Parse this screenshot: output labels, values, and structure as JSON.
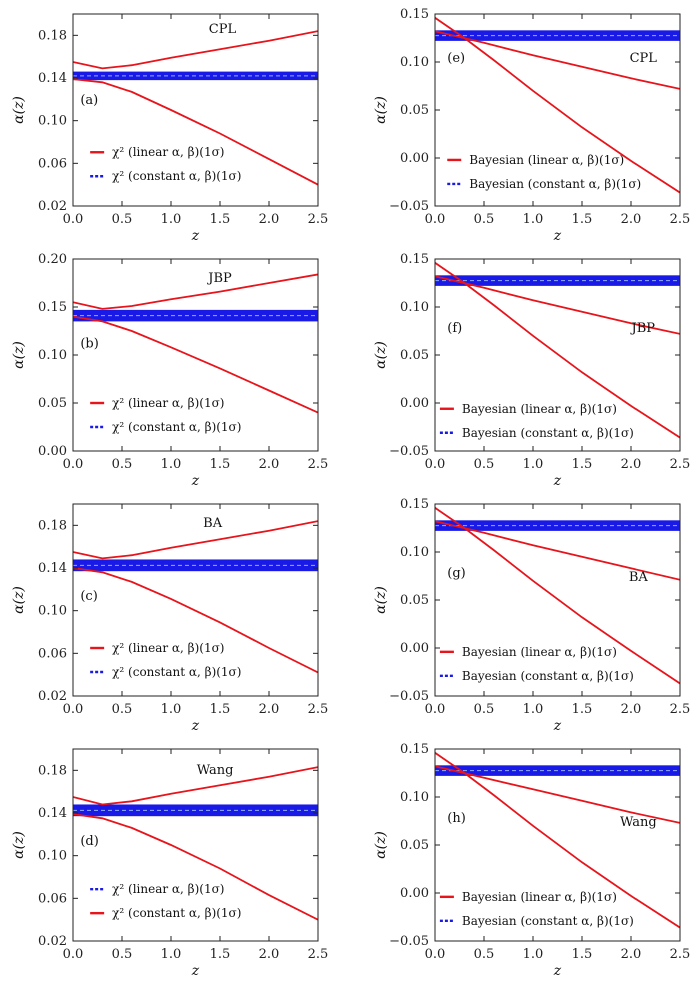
{
  "chart_data": [
    {
      "type": "line",
      "panel": "(a)",
      "title": "CPL",
      "xlabel": "z",
      "ylabel": "α(z)",
      "xlim": [
        0,
        2.5
      ],
      "ylim": [
        0.02,
        0.2
      ],
      "xticks": [
        "0.0",
        "0.5",
        "1.0",
        "1.5",
        "2.0",
        "2.5"
      ],
      "yticks": [
        "0.02",
        "0.06",
        "0.10",
        "0.14",
        "0.18"
      ],
      "ytick_values": [
        0.02,
        0.06,
        0.1,
        0.14,
        0.18
      ],
      "legend": [
        {
          "label": "χ² (linear α, β)(1σ)",
          "color": "#e8141b",
          "dash": "solid"
        },
        {
          "label": "χ² (constant α, β)(1σ)",
          "color": "#1a1ae6",
          "dash": "dashed"
        }
      ],
      "band": {
        "y_low": 0.138,
        "y_high": 0.146,
        "color": "#1a1ae6"
      },
      "series": [
        {
          "color": "#e8141b",
          "x": [
            0,
            0.3,
            0.6,
            1.0,
            1.5,
            2.0,
            2.5
          ],
          "y": [
            0.155,
            0.149,
            0.152,
            0.159,
            0.167,
            0.175,
            0.184
          ]
        },
        {
          "color": "#e8141b",
          "x": [
            0,
            0.3,
            0.6,
            1.0,
            1.5,
            2.0,
            2.5
          ],
          "y": [
            0.139,
            0.136,
            0.127,
            0.11,
            0.088,
            0.064,
            0.04
          ]
        }
      ]
    },
    {
      "type": "line",
      "panel": "(e)",
      "title": "CPL",
      "xlabel": "z",
      "ylabel": "α(z)",
      "xlim": [
        0,
        2.5
      ],
      "ylim": [
        -0.05,
        0.15
      ],
      "xticks": [
        "0.0",
        "0.5",
        "1.0",
        "1.5",
        "2.0",
        "2.5"
      ],
      "yticks": [
        "−0.05",
        "0.00",
        "0.05",
        "0.10",
        "0.15"
      ],
      "ytick_values": [
        -0.05,
        0.0,
        0.05,
        0.1,
        0.15
      ],
      "legend": [
        {
          "label": "Bayesian (linear α, β)(1σ)",
          "color": "#e8141b",
          "dash": "solid"
        },
        {
          "label": "Bayesian (constant α, β)(1σ)",
          "color": "#1a1ae6",
          "dash": "dashed"
        }
      ],
      "band": {
        "y_low": 0.122,
        "y_high": 0.133,
        "color": "#1a1ae6"
      },
      "series": [
        {
          "color": "#e8141b",
          "x": [
            0,
            0.5,
            1.0,
            1.5,
            2.0,
            2.5
          ],
          "y": [
            0.132,
            0.12,
            0.107,
            0.095,
            0.083,
            0.072
          ]
        },
        {
          "color": "#e8141b",
          "x": [
            0,
            0.3,
            0.6,
            1.0,
            1.5,
            2.0,
            2.5
          ],
          "y": [
            0.146,
            0.125,
            0.102,
            0.07,
            0.032,
            -0.003,
            -0.036
          ]
        }
      ]
    },
    {
      "type": "line",
      "panel": "(b)",
      "title": "JBP",
      "xlabel": "z",
      "ylabel": "α(z)",
      "xlim": [
        0,
        2.5
      ],
      "ylim": [
        0.0,
        0.2
      ],
      "xticks": [
        "0.0",
        "0.5",
        "1.0",
        "1.5",
        "2.0",
        "2.5"
      ],
      "yticks": [
        "0.00",
        "0.05",
        "0.10",
        "0.15",
        "0.20"
      ],
      "ytick_values": [
        0.0,
        0.05,
        0.1,
        0.15,
        0.2
      ],
      "legend": [
        {
          "label": "χ² (linear α, β)(1σ)",
          "color": "#e8141b",
          "dash": "solid"
        },
        {
          "label": "χ² (constant α, β)(1σ)",
          "color": "#1a1ae6",
          "dash": "dashed"
        }
      ],
      "band": {
        "y_low": 0.135,
        "y_high": 0.147,
        "color": "#1a1ae6"
      },
      "series": [
        {
          "color": "#e8141b",
          "x": [
            0,
            0.3,
            0.6,
            1.0,
            1.5,
            2.0,
            2.5
          ],
          "y": [
            0.155,
            0.148,
            0.151,
            0.158,
            0.166,
            0.175,
            0.184
          ]
        },
        {
          "color": "#e8141b",
          "x": [
            0,
            0.3,
            0.6,
            1.0,
            1.5,
            2.0,
            2.5
          ],
          "y": [
            0.14,
            0.135,
            0.125,
            0.108,
            0.086,
            0.063,
            0.04
          ]
        }
      ]
    },
    {
      "type": "line",
      "panel": "(f)",
      "title": "JBP",
      "xlabel": "z",
      "ylabel": "α(z)",
      "xlim": [
        0,
        2.5
      ],
      "ylim": [
        -0.05,
        0.15
      ],
      "xticks": [
        "0.0",
        "0.5",
        "1.0",
        "1.5",
        "2.0",
        "2.5"
      ],
      "yticks": [
        "−0.05",
        "0.00",
        "0.05",
        "0.10",
        "0.15"
      ],
      "ytick_values": [
        -0.05,
        0.0,
        0.05,
        0.1,
        0.15
      ],
      "legend": [
        {
          "label": "Bayesian (linear α, β)(1σ)",
          "color": "#e8141b",
          "dash": "solid"
        },
        {
          "label": "Bayesian (constant α, β)(1σ)",
          "color": "#1a1ae6",
          "dash": "dashed"
        }
      ],
      "band": {
        "y_low": 0.122,
        "y_high": 0.133,
        "color": "#1a1ae6"
      },
      "series": [
        {
          "color": "#e8141b",
          "x": [
            0,
            0.5,
            1.0,
            1.5,
            2.0,
            2.5
          ],
          "y": [
            0.132,
            0.12,
            0.107,
            0.095,
            0.083,
            0.072
          ]
        },
        {
          "color": "#e8141b",
          "x": [
            0,
            0.3,
            0.6,
            1.0,
            1.5,
            2.0,
            2.5
          ],
          "y": [
            0.146,
            0.125,
            0.102,
            0.07,
            0.032,
            -0.003,
            -0.036
          ]
        }
      ]
    },
    {
      "type": "line",
      "panel": "(c)",
      "title": "BA",
      "xlabel": "z",
      "ylabel": "α(z)",
      "xlim": [
        0,
        2.5
      ],
      "ylim": [
        0.02,
        0.2
      ],
      "xticks": [
        "0.0",
        "0.5",
        "1.0",
        "1.5",
        "2.0",
        "2.5"
      ],
      "yticks": [
        "0.02",
        "0.06",
        "0.10",
        "0.14",
        "0.18"
      ],
      "ytick_values": [
        0.02,
        0.06,
        0.1,
        0.14,
        0.18
      ],
      "legend": [
        {
          "label": "χ² (linear α, β)(1σ)",
          "color": "#e8141b",
          "dash": "solid"
        },
        {
          "label": "χ² (constant α, β)(1σ)",
          "color": "#1a1ae6",
          "dash": "dashed"
        }
      ],
      "band": {
        "y_low": 0.137,
        "y_high": 0.148,
        "color": "#1a1ae6"
      },
      "series": [
        {
          "color": "#e8141b",
          "x": [
            0,
            0.3,
            0.6,
            1.0,
            1.5,
            2.0,
            2.5
          ],
          "y": [
            0.155,
            0.149,
            0.152,
            0.159,
            0.167,
            0.175,
            0.184
          ]
        },
        {
          "color": "#e8141b",
          "x": [
            0,
            0.3,
            0.6,
            1.0,
            1.5,
            2.0,
            2.5
          ],
          "y": [
            0.14,
            0.136,
            0.127,
            0.111,
            0.089,
            0.065,
            0.042
          ]
        }
      ]
    },
    {
      "type": "line",
      "panel": "(g)",
      "title": "BA",
      "xlabel": "z",
      "ylabel": "α(z)",
      "xlim": [
        0,
        2.5
      ],
      "ylim": [
        -0.05,
        0.15
      ],
      "xticks": [
        "0.0",
        "0.5",
        "1.0",
        "1.5",
        "2.0",
        "2.5"
      ],
      "yticks": [
        "−0.05",
        "0.00",
        "0.05",
        "0.10",
        "0.15"
      ],
      "ytick_values": [
        -0.05,
        0.0,
        0.05,
        0.1,
        0.15
      ],
      "legend": [
        {
          "label": "Bayesian (linear α, β)(1σ)",
          "color": "#e8141b",
          "dash": "solid"
        },
        {
          "label": "Bayesian (constant α, β)(1σ)",
          "color": "#1a1ae6",
          "dash": "dashed"
        }
      ],
      "band": {
        "y_low": 0.122,
        "y_high": 0.133,
        "color": "#1a1ae6"
      },
      "series": [
        {
          "color": "#e8141b",
          "x": [
            0,
            0.5,
            1.0,
            1.5,
            2.0,
            2.5
          ],
          "y": [
            0.132,
            0.12,
            0.107,
            0.095,
            0.083,
            0.071
          ]
        },
        {
          "color": "#e8141b",
          "x": [
            0,
            0.3,
            0.6,
            1.0,
            1.5,
            2.0,
            2.5
          ],
          "y": [
            0.146,
            0.125,
            0.102,
            0.07,
            0.032,
            -0.003,
            -0.037
          ]
        }
      ]
    },
    {
      "type": "line",
      "panel": "(d)",
      "title": "Wang",
      "xlabel": "z",
      "ylabel": "α(z)",
      "xlim": [
        0,
        2.5
      ],
      "ylim": [
        0.02,
        0.2
      ],
      "xticks": [
        "0.0",
        "0.5",
        "1.0",
        "1.5",
        "2.0",
        "2.5"
      ],
      "yticks": [
        "0.02",
        "0.06",
        "0.10",
        "0.14",
        "0.18"
      ],
      "ytick_values": [
        0.02,
        0.06,
        0.1,
        0.14,
        0.18
      ],
      "legend": [
        {
          "label": "χ² (linear α, β)(1σ)",
          "color": "#1a1ae6",
          "dash": "dashed"
        },
        {
          "label": "χ² (constant α, β)(1σ)",
          "color": "#e8141b",
          "dash": "solid"
        }
      ],
      "band": {
        "y_low": 0.137,
        "y_high": 0.148,
        "color": "#1a1ae6"
      },
      "series": [
        {
          "color": "#e8141b",
          "x": [
            0,
            0.3,
            0.6,
            1.0,
            1.5,
            2.0,
            2.5
          ],
          "y": [
            0.155,
            0.148,
            0.151,
            0.158,
            0.166,
            0.174,
            0.183
          ]
        },
        {
          "color": "#e8141b",
          "x": [
            0,
            0.3,
            0.6,
            1.0,
            1.5,
            2.0,
            2.5
          ],
          "y": [
            0.139,
            0.135,
            0.126,
            0.11,
            0.088,
            0.063,
            0.04
          ]
        }
      ]
    },
    {
      "type": "line",
      "panel": "(h)",
      "title": "Wang",
      "xlabel": "z",
      "ylabel": "α(z)",
      "xlim": [
        0,
        2.5
      ],
      "ylim": [
        -0.05,
        0.15
      ],
      "xticks": [
        "0.0",
        "0.5",
        "1.0",
        "1.5",
        "2.0",
        "2.5"
      ],
      "yticks": [
        "−0.05",
        "0.00",
        "0.05",
        "0.10",
        "0.15"
      ],
      "ytick_values": [
        -0.05,
        0.0,
        0.05,
        0.1,
        0.15
      ],
      "legend": [
        {
          "label": "Bayesian (linear α, β)(1σ)",
          "color": "#e8141b",
          "dash": "solid"
        },
        {
          "label": "Bayesian (constant α, β)(1σ)",
          "color": "#1a1ae6",
          "dash": "dashed"
        }
      ],
      "band": {
        "y_low": 0.122,
        "y_high": 0.133,
        "color": "#1a1ae6"
      },
      "series": [
        {
          "color": "#e8141b",
          "x": [
            0,
            0.5,
            1.0,
            1.5,
            2.0,
            2.5
          ],
          "y": [
            0.132,
            0.12,
            0.108,
            0.096,
            0.084,
            0.073
          ]
        },
        {
          "color": "#e8141b",
          "x": [
            0,
            0.3,
            0.6,
            1.0,
            1.5,
            2.0,
            2.5
          ],
          "y": [
            0.146,
            0.125,
            0.102,
            0.07,
            0.032,
            -0.003,
            -0.036
          ]
        }
      ]
    }
  ]
}
